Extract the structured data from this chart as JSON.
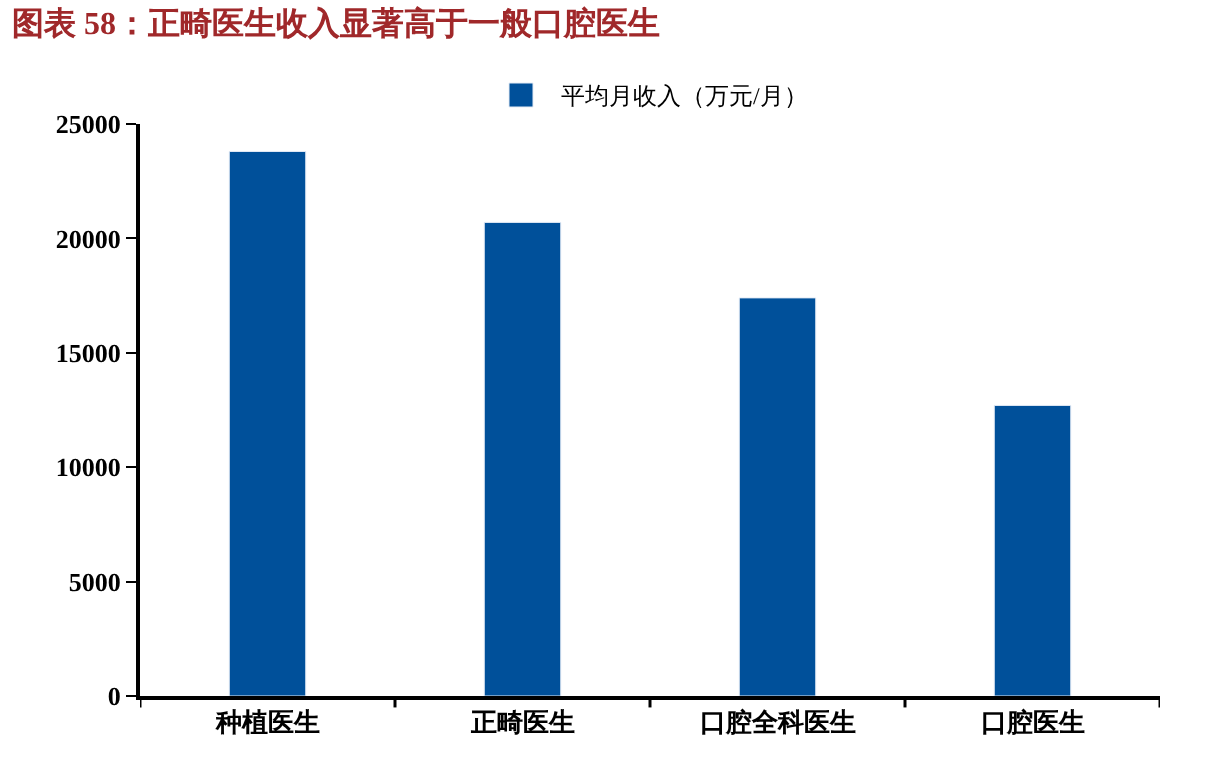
{
  "chart_data": {
    "type": "bar",
    "title": "图表 58：正畸医生收入显著高于一般口腔医生",
    "categories": [
      "种植医生",
      "正畸医生",
      "口腔全科医生",
      "口腔医生"
    ],
    "series": [
      {
        "name": "平均月收入（万元/月）",
        "color": "#00509a",
        "values": [
          23800,
          20700,
          17400,
          12700
        ]
      }
    ],
    "ylim": [
      0,
      25000
    ],
    "yticks": [
      0,
      5000,
      10000,
      15000,
      20000,
      25000
    ],
    "legend": "top"
  }
}
